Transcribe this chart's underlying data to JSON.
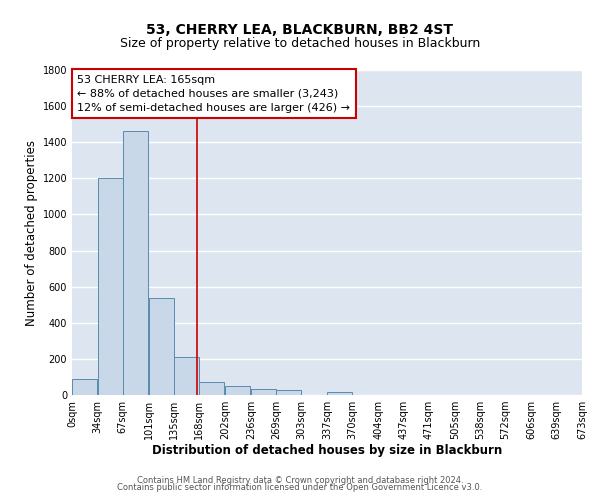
{
  "title": "53, CHERRY LEA, BLACKBURN, BB2 4ST",
  "subtitle": "Size of property relative to detached houses in Blackburn",
  "xlabel": "Distribution of detached houses by size in Blackburn",
  "ylabel": "Number of detached properties",
  "bar_color": "#c8d8e8",
  "bar_edge_color": "#5a8ab0",
  "background_color": "#dde6f0",
  "grid_color": "white",
  "bar_left_edges": [
    0,
    34,
    67,
    101,
    135,
    168,
    202,
    236,
    269,
    303,
    337,
    370,
    404,
    437,
    471,
    505,
    538,
    572,
    606,
    639
  ],
  "bar_heights": [
    90,
    1200,
    1460,
    540,
    210,
    70,
    48,
    35,
    25,
    0,
    18,
    0,
    0,
    0,
    0,
    0,
    0,
    0,
    0,
    0
  ],
  "bin_width": 33,
  "xlim": [
    0,
    673
  ],
  "ylim": [
    0,
    1800
  ],
  "yticks": [
    0,
    200,
    400,
    600,
    800,
    1000,
    1200,
    1400,
    1600,
    1800
  ],
  "xtick_labels": [
    "0sqm",
    "34sqm",
    "67sqm",
    "101sqm",
    "135sqm",
    "168sqm",
    "202sqm",
    "236sqm",
    "269sqm",
    "303sqm",
    "337sqm",
    "370sqm",
    "404sqm",
    "437sqm",
    "471sqm",
    "505sqm",
    "538sqm",
    "572sqm",
    "606sqm",
    "639sqm",
    "673sqm"
  ],
  "xtick_positions": [
    0,
    34,
    67,
    101,
    135,
    168,
    202,
    236,
    269,
    303,
    337,
    370,
    404,
    437,
    471,
    505,
    538,
    572,
    606,
    639,
    673
  ],
  "vline_x": 165,
  "vline_color": "#cc0000",
  "annotation_title": "53 CHERRY LEA: 165sqm",
  "annotation_line1": "← 88% of detached houses are smaller (3,243)",
  "annotation_line2": "12% of semi-detached houses are larger (426) →",
  "annotation_box_facecolor": "white",
  "annotation_box_edgecolor": "#cc0000",
  "footer_line1": "Contains HM Land Registry data © Crown copyright and database right 2024.",
  "footer_line2": "Contains public sector information licensed under the Open Government Licence v3.0.",
  "title_fontsize": 10,
  "subtitle_fontsize": 9,
  "axis_label_fontsize": 8.5,
  "tick_fontsize": 7,
  "annotation_fontsize": 8,
  "footer_fontsize": 6
}
